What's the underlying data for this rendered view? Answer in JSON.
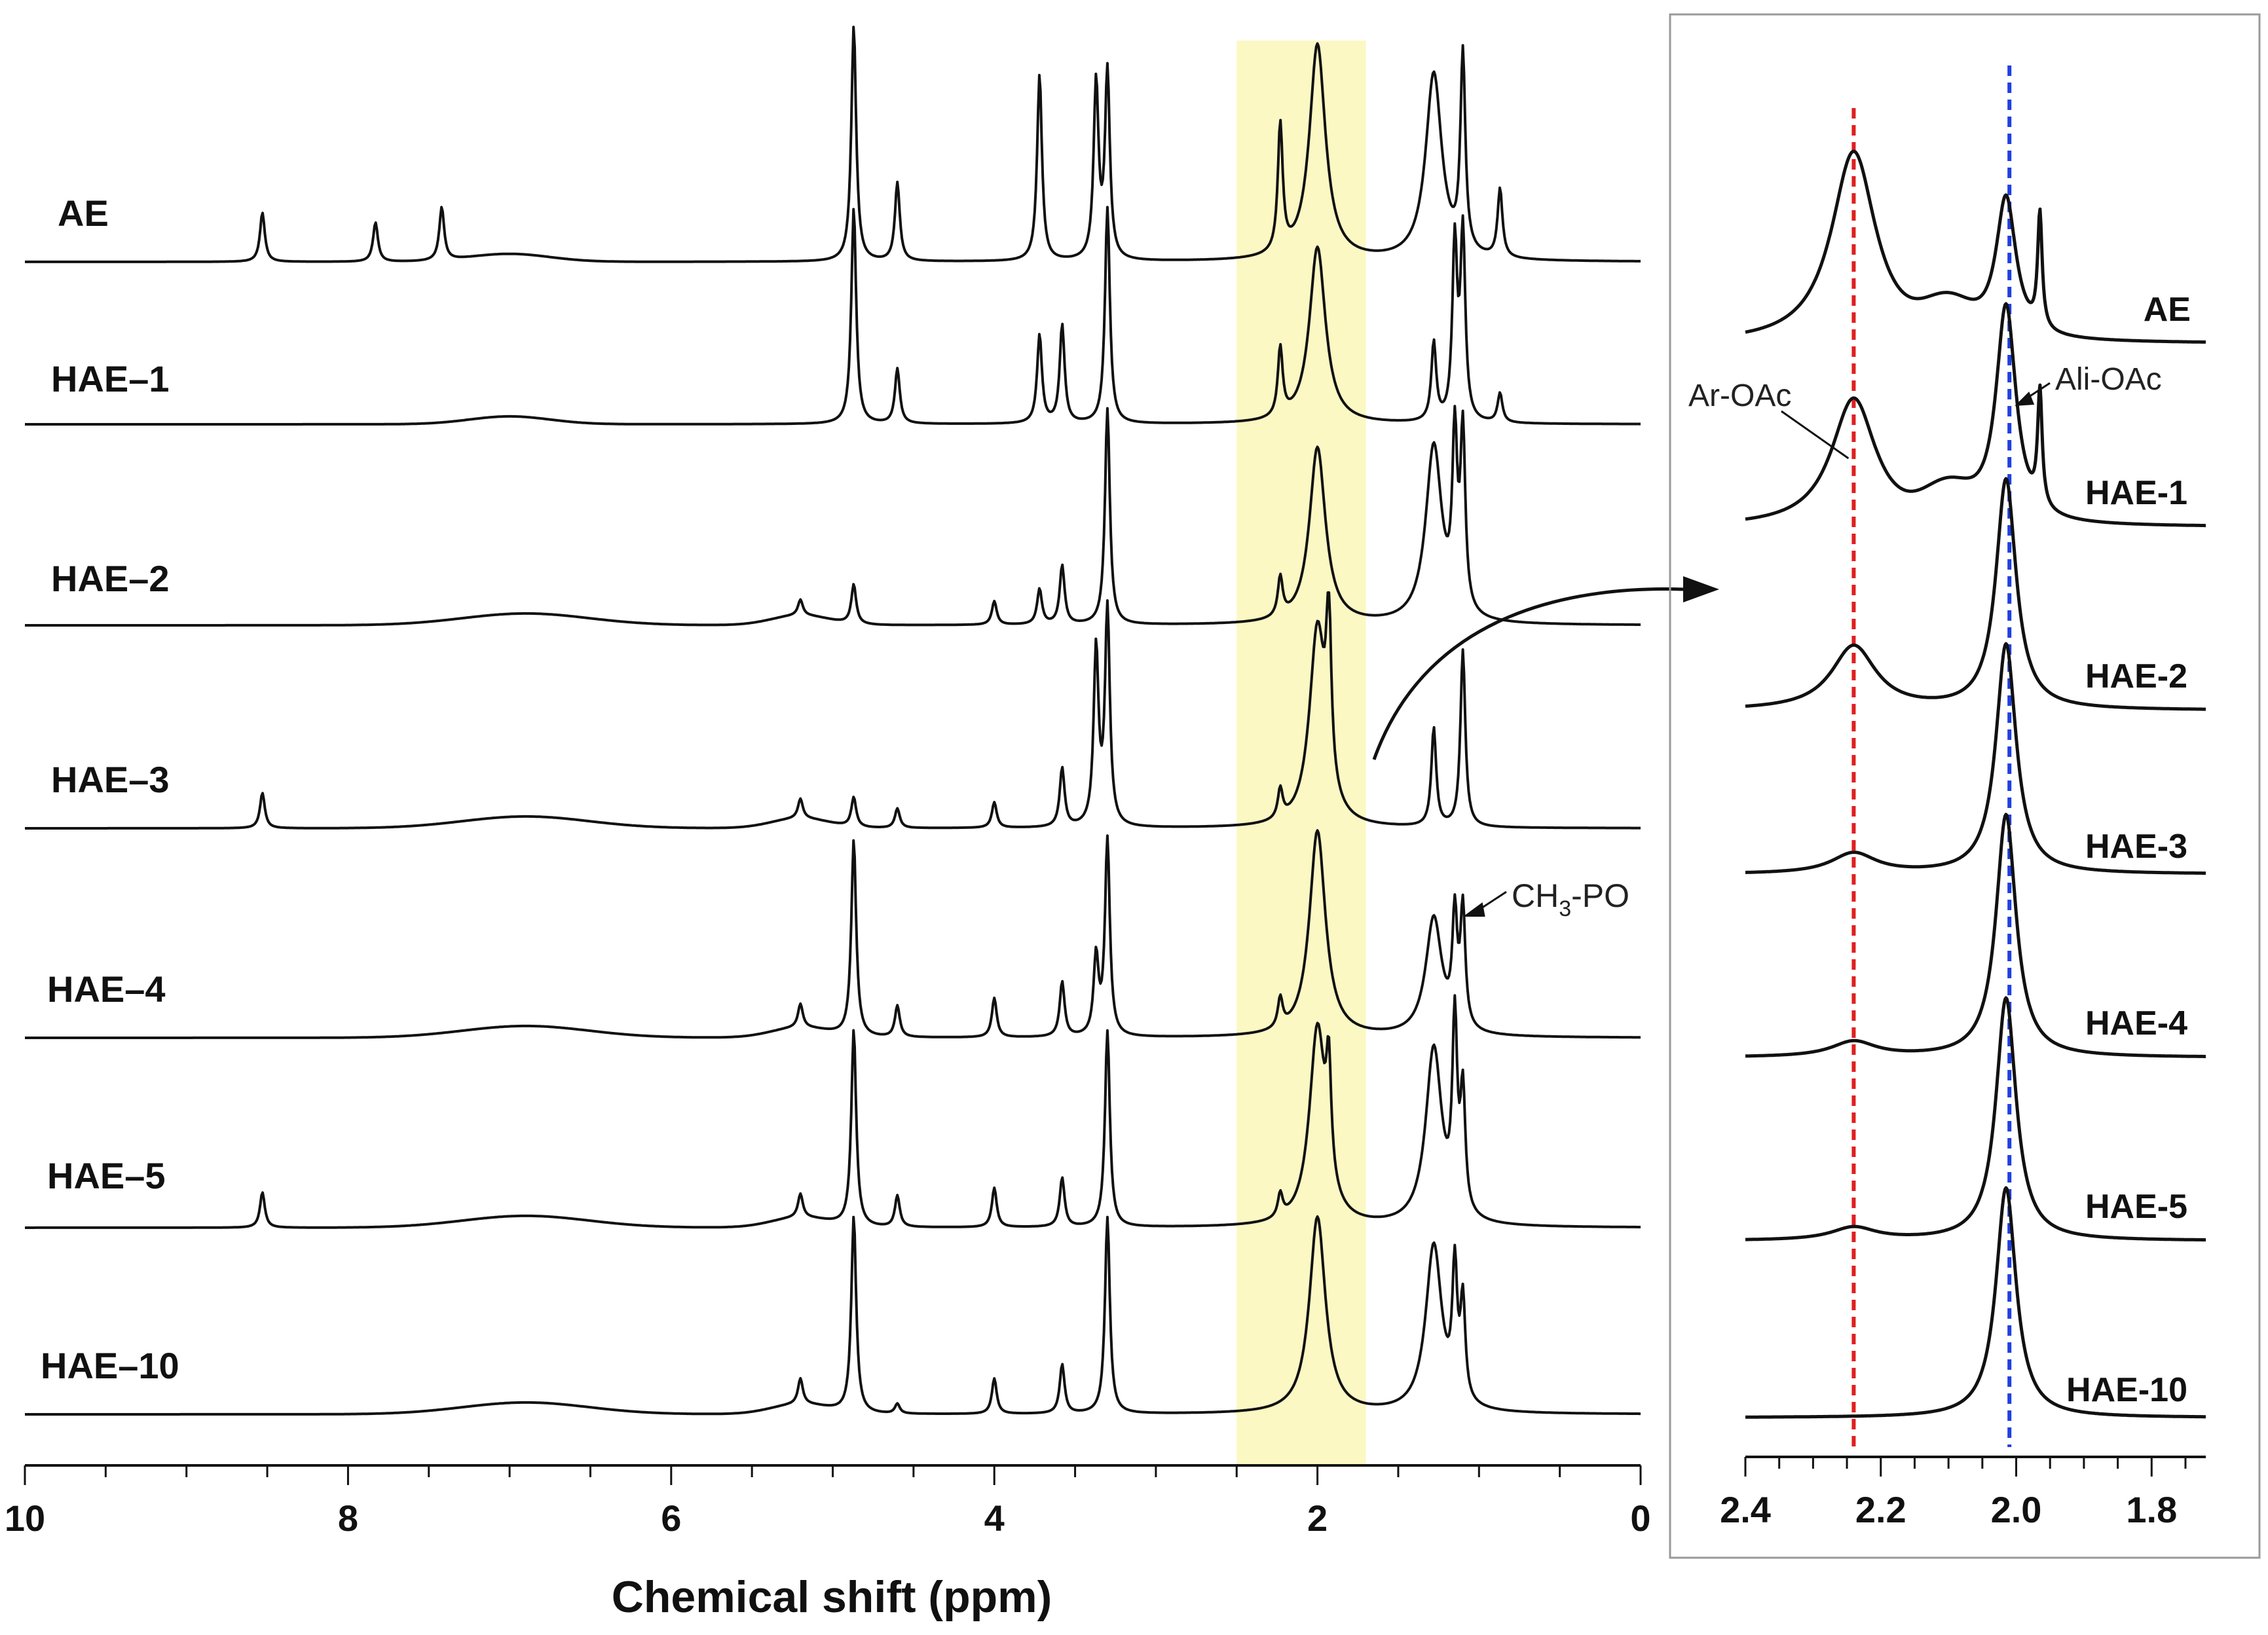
{
  "chart_data": [
    {
      "type": "line",
      "title": "",
      "xlabel": "Chemical shift (ppm)",
      "ylabel": "",
      "xlim": [
        10,
        0
      ],
      "x_ticks": [
        "10",
        "8",
        "6",
        "4",
        "2",
        "0"
      ],
      "highlight_band_ppm": [
        1.7,
        2.5
      ],
      "highlight_color": "#fbf8c4",
      "series": [
        {
          "name": "AE",
          "peaks": [
            [
              8.53,
              0.25
            ],
            [
              7.83,
              0.2
            ],
            [
              7.42,
              0.27
            ],
            [
              4.87,
              1.2
            ],
            [
              4.6,
              0.4
            ],
            [
              3.72,
              0.95
            ],
            [
              3.37,
              0.9
            ],
            [
              3.3,
              0.95
            ],
            [
              2.23,
              0.65
            ],
            [
              2.0,
              1.1
            ],
            [
              1.28,
              0.95
            ],
            [
              1.1,
              1.0
            ],
            [
              0.87,
              0.35
            ]
          ]
        },
        {
          "name": "HAE–1",
          "peaks": [
            [
              4.87,
              1.1
            ],
            [
              4.6,
              0.28
            ],
            [
              3.72,
              0.45
            ],
            [
              3.58,
              0.5
            ],
            [
              3.3,
              1.1
            ],
            [
              2.23,
              0.35
            ],
            [
              2.0,
              0.9
            ],
            [
              1.28,
              0.4
            ],
            [
              1.15,
              0.9
            ],
            [
              1.1,
              0.95
            ],
            [
              0.87,
              0.15
            ]
          ]
        },
        {
          "name": "HAE–2",
          "peaks": [
            [
              5.2,
              0.08
            ],
            [
              4.87,
              0.2
            ],
            [
              4.0,
              0.12
            ],
            [
              3.72,
              0.18
            ],
            [
              3.58,
              0.3
            ],
            [
              3.3,
              1.1
            ],
            [
              2.23,
              0.2
            ],
            [
              2.0,
              0.9
            ],
            [
              1.28,
              0.9
            ],
            [
              1.15,
              0.85
            ],
            [
              1.1,
              0.9
            ]
          ]
        },
        {
          "name": "HAE–3",
          "peaks": [
            [
              8.53,
              0.18
            ],
            [
              5.2,
              0.1
            ],
            [
              4.87,
              0.15
            ],
            [
              4.6,
              0.1
            ],
            [
              4.0,
              0.13
            ],
            [
              3.58,
              0.3
            ],
            [
              3.37,
              0.9
            ],
            [
              3.3,
              1.1
            ],
            [
              2.23,
              0.15
            ],
            [
              2.0,
              1.0
            ],
            [
              1.93,
              0.85
            ],
            [
              1.28,
              0.5
            ],
            [
              1.1,
              0.9
            ]
          ]
        },
        {
          "name": "HAE–4",
          "peaks": [
            [
              5.2,
              0.12
            ],
            [
              4.87,
              1.0
            ],
            [
              4.6,
              0.16
            ],
            [
              4.0,
              0.2
            ],
            [
              3.58,
              0.28
            ],
            [
              3.37,
              0.4
            ],
            [
              3.3,
              1.0
            ],
            [
              2.23,
              0.15
            ],
            [
              2.0,
              1.05
            ],
            [
              1.28,
              0.6
            ],
            [
              1.15,
              0.55
            ],
            [
              1.1,
              0.6
            ]
          ]
        },
        {
          "name": "HAE–5",
          "peaks": [
            [
              8.53,
              0.18
            ],
            [
              5.2,
              0.12
            ],
            [
              4.87,
              1.0
            ],
            [
              4.6,
              0.16
            ],
            [
              4.0,
              0.2
            ],
            [
              3.58,
              0.25
            ],
            [
              3.3,
              1.0
            ],
            [
              2.23,
              0.12
            ],
            [
              2.0,
              1.0
            ],
            [
              1.93,
              0.55
            ],
            [
              1.28,
              0.9
            ],
            [
              1.15,
              0.95
            ],
            [
              1.1,
              0.6
            ]
          ]
        },
        {
          "name": "HAE–10",
          "peaks": [
            [
              5.2,
              0.13
            ],
            [
              4.87,
              1.0
            ],
            [
              4.6,
              0.05
            ],
            [
              4.0,
              0.18
            ],
            [
              3.58,
              0.25
            ],
            [
              3.3,
              1.0
            ],
            [
              2.0,
              1.0
            ],
            [
              1.28,
              0.85
            ],
            [
              1.15,
              0.65
            ],
            [
              1.1,
              0.5
            ]
          ]
        }
      ],
      "annotations": [
        {
          "text": "CH3-PO",
          "main": "CH",
          "sub": "3",
          "rest": "-PO",
          "x": 1.1
        }
      ]
    },
    {
      "type": "line",
      "title": "",
      "xlabel": "",
      "xlim": [
        2.4,
        1.72
      ],
      "x_ticks": [
        "2.4",
        "2.2",
        "2.0",
        "1.8"
      ],
      "reference_lines": [
        {
          "x": 2.24,
          "color": "#e02020",
          "style": "dashed",
          "label": "Ar-OAc"
        },
        {
          "x": 2.01,
          "color": "#2040e0",
          "style": "dashed",
          "label": "Ali-OAc"
        }
      ],
      "series": [
        {
          "name": "AE",
          "ar_oac": 0.75,
          "ali_oac": 0.55
        },
        {
          "name": "HAE-1",
          "ar_oac": 0.5,
          "ali_oac": 0.85
        },
        {
          "name": "HAE-2",
          "ar_oac": 0.25,
          "ali_oac": 0.9
        },
        {
          "name": "HAE-3",
          "ar_oac": 0.08,
          "ali_oac": 0.9
        },
        {
          "name": "HAE-4",
          "ar_oac": 0.06,
          "ali_oac": 0.95
        },
        {
          "name": "HAE-5",
          "ar_oac": 0.05,
          "ali_oac": 0.95
        },
        {
          "name": "HAE-10",
          "ar_oac": 0.0,
          "ali_oac": 0.9
        }
      ]
    }
  ]
}
